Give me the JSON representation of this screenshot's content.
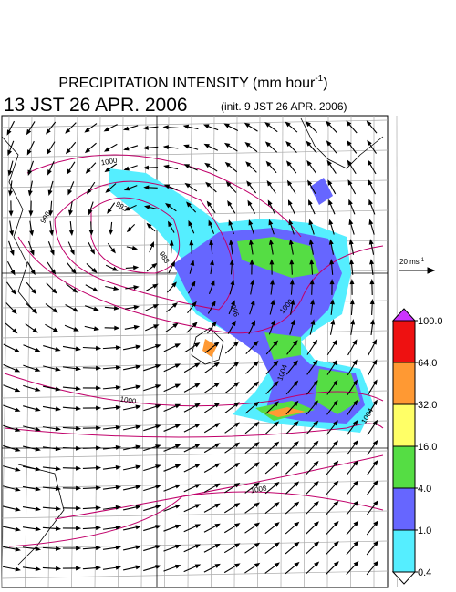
{
  "header": {
    "title": {
      "text": "PRECIPITATION INTENSITY (mm hour",
      "superscript": "-1",
      "close": ")"
    },
    "valid_time": "13 JST 26 APR. 2006",
    "init_time": "(init. 9 JST 26 APR. 2006)"
  },
  "wind_scale": {
    "text": "20 ms",
    "superscript": "-1"
  },
  "contour_labels": [
    "1000",
    "992",
    "996",
    "988",
    "996",
    "1000",
    "1004",
    "1000",
    "1004",
    "1008"
  ],
  "colorbar": {
    "ticks": [
      {
        "value": 100,
        "label": "100.0"
      },
      {
        "value": 64,
        "label": "64.0"
      },
      {
        "value": 32,
        "label": "32.0"
      },
      {
        "value": 16,
        "label": "16.0"
      },
      {
        "value": 4,
        "label": "4.0"
      },
      {
        "value": 1,
        "label": "1.0"
      },
      {
        "value": 0.4,
        "label": "0.4"
      }
    ],
    "colors": [
      "#cc33ff",
      "#ee1111",
      "#ff9933",
      "#ffff66",
      "#55dd44",
      "#6666ff",
      "#55eeff",
      "#ffffff"
    ]
  }
}
